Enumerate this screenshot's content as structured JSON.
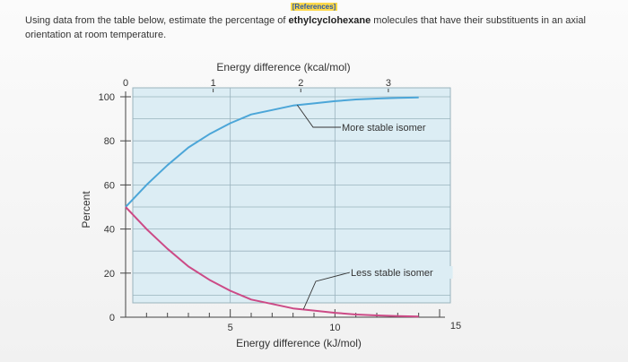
{
  "references_label": "[References]",
  "question": {
    "before": "Using data from the table below, estimate the percentage of ",
    "bold": "ethylcyclohexane",
    "after": " molecules that have their substituents in an axial orientation at room temperature."
  },
  "colors": {
    "plot_bg": "#dcedf4",
    "grid": "#9ab3bd",
    "more_stable": "#4ca6d8",
    "less_stable": "#cc4a86",
    "axis": "#444444"
  },
  "chart_data": {
    "type": "line",
    "title": "",
    "x_top_label": "Energy difference (kcal/mol)",
    "x_top_ticks": [
      "0",
      "1",
      "2",
      "3"
    ],
    "x_bottom_label": "Energy difference (kJ/mol)",
    "x_bottom_ticks": [
      "5",
      "10",
      "15"
    ],
    "ylabel": "Percent",
    "y_ticks": [
      "0",
      "20",
      "40",
      "60",
      "80",
      "100"
    ],
    "xlim_kj": [
      0,
      15
    ],
    "ylim": [
      0,
      100
    ],
    "grid": true,
    "series": [
      {
        "name": "More stable isomer",
        "x": [
          0,
          0.5,
          1,
          1.5,
          2,
          3,
          4,
          5,
          6,
          7,
          8,
          9,
          10,
          11,
          12,
          13,
          14
        ],
        "y": [
          50,
          55,
          60,
          64.5,
          69,
          77,
          83,
          88,
          92,
          94,
          96,
          97,
          98,
          98.8,
          99.2,
          99.5,
          99.7
        ]
      },
      {
        "name": "Less stable isomer",
        "x": [
          0,
          0.5,
          1,
          1.5,
          2,
          3,
          4,
          5,
          6,
          7,
          8,
          9,
          10,
          11,
          12,
          13,
          14
        ],
        "y": [
          50,
          45,
          40,
          35.5,
          31,
          23,
          17,
          12,
          8,
          6,
          4,
          3,
          2,
          1.2,
          0.8,
          0.5,
          0.3
        ]
      }
    ],
    "annotations": [
      "More stable isomer",
      "Less stable isomer"
    ]
  }
}
